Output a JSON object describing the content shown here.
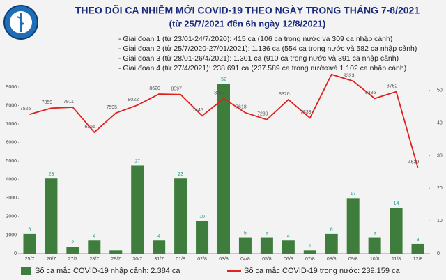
{
  "chart_data": {
    "type": "bar_line",
    "title": "THEO DÕI CA NHIỄM MỚI COVID-19 THEO NGÀY TRONG THÁNG 7-8/2021",
    "subtitle": "(từ 25/7/2021 đến 6h ngày 12/8/2021)",
    "notes": [
      "- Giai đoạn 1 (từ 23/01-24/7/2020): 415 ca (106 ca trong nước và 309 ca nhập cảnh)",
      "- Giai đoạn 2 (từ 25/7/2020-27/01/2021): 1.136 ca (554 ca trong nước và 582 ca nhập cảnh)",
      "- Giai đoạn 3 (từ 28/01-26/4/2021): 1.301 ca (910 ca trong nước và 391 ca nhập cảnh)",
      "- Giai đoạn 4 (từ 27/4/2021): 238.691 ca (237.589 ca trong nước và 1.102 ca nhập cảnh)"
    ],
    "categories": [
      "25/7",
      "26/7",
      "27/7",
      "28/7",
      "29/7",
      "30/7",
      "31/7",
      "01/8",
      "02/8",
      "03/8",
      "04/8",
      "05/8",
      "06/8",
      "07/8",
      "08/8",
      "09/8",
      "10/8",
      "11/8",
      "12/8"
    ],
    "series": [
      {
        "name": "Số ca mắc COVID-19 nhập cảnh: 2.384 ca",
        "kind": "bar",
        "axis": "y2",
        "color": "#3f7d3c",
        "values": [
          6,
          23,
          2,
          4,
          1,
          27,
          4,
          23,
          10,
          52,
          5,
          5,
          4,
          1,
          6,
          17,
          5,
          14,
          3
        ]
      },
      {
        "name": "Số ca mắc COVID-19 trong nước: 239.159 ca",
        "kind": "line",
        "axis": "y",
        "color": "#e0211d",
        "values": [
          7525,
          7859,
          7911,
          6555,
          7595,
          8022,
          8620,
          8597,
          7445,
          8377,
          7618,
          7239,
          8320,
          7333,
          9684,
          9323,
          8385,
          8752,
          4639
        ]
      }
    ],
    "ylim": [
      0,
      9000
    ],
    "yticks": [
      0,
      1000,
      2000,
      3000,
      4000,
      5000,
      6000,
      7000,
      8000,
      9000
    ],
    "y2lim": [
      0,
      51
    ],
    "y2ticks": [
      0,
      10,
      20,
      30,
      40,
      50
    ]
  }
}
